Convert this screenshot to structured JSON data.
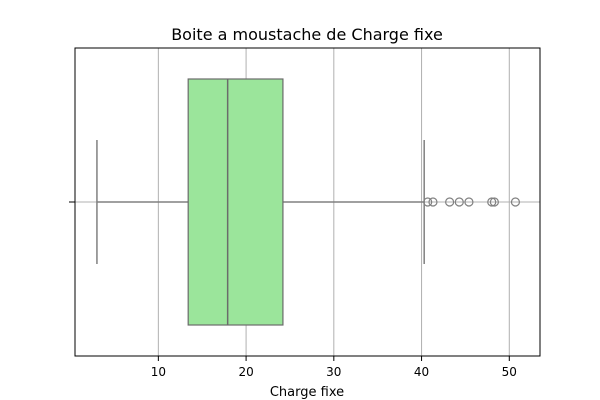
{
  "chart_data": {
    "type": "boxplot",
    "title": "Boite a moustache de Charge fixe",
    "xlabel": "Charge fixe",
    "ylabel": "",
    "xlim": [
      0.5,
      53.5
    ],
    "xticks": [
      10,
      20,
      30,
      40,
      50
    ],
    "grid": true,
    "orientation": "horizontal",
    "box": {
      "whisker_low": 3.0,
      "q1": 13.4,
      "median": 17.9,
      "q3": 24.2,
      "whisker_high": 40.3
    },
    "outliers": [
      40.7,
      41.3,
      43.2,
      44.3,
      45.4,
      48.0,
      48.3,
      50.7
    ],
    "colors": {
      "box_fill": "#9be59b",
      "box_edge": "#6b6b6b",
      "whisker": "#808080",
      "grid": "#b0b0b0"
    }
  }
}
